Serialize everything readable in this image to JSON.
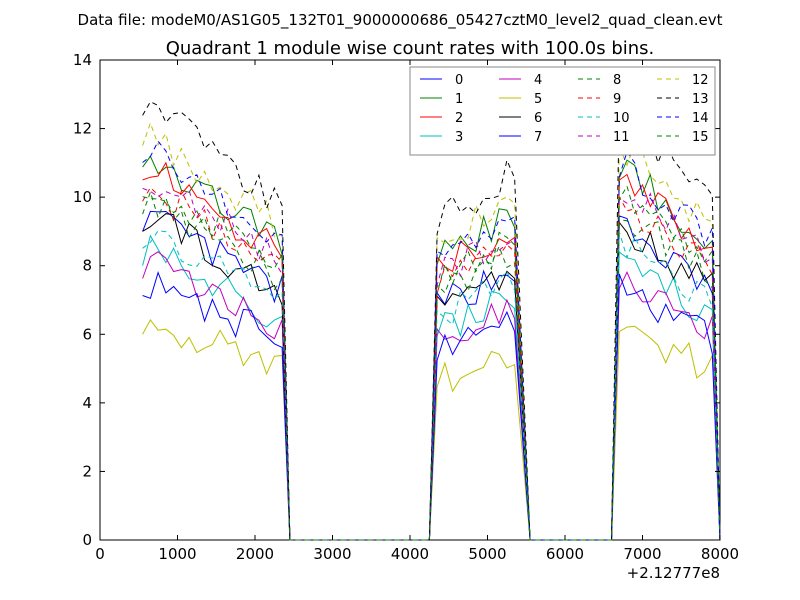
{
  "figure": {
    "suptitle": "Data file: modeM0/AS1G05_132T01_9000000686_05427cztM0_level2_quad_clean.evt"
  },
  "chart_data": {
    "type": "line",
    "title": "Quadrant 1 module wise count rates with 100.0s bins.",
    "xlabel": "",
    "ylabel": "",
    "xlim": [
      0,
      8000
    ],
    "ylim": [
      0,
      14
    ],
    "x_ticks": [
      0,
      1000,
      2000,
      3000,
      4000,
      5000,
      6000,
      7000,
      8000
    ],
    "y_ticks": [
      0,
      2,
      4,
      6,
      8,
      10,
      12,
      14
    ],
    "x_offset_label": "+2.12777e8",
    "grid": false,
    "legend": {
      "placement": "top-right",
      "columns": 4
    },
    "series": [
      {
        "name": "0",
        "color": "#0000ff",
        "style": "solid",
        "base": 7.6,
        "amp": 0.5
      },
      {
        "name": "1",
        "color": "#008000",
        "style": "solid",
        "base": 9.1,
        "amp": 0.5
      },
      {
        "name": "2",
        "color": "#ff0000",
        "style": "solid",
        "base": 8.8,
        "amp": 0.5
      },
      {
        "name": "3",
        "color": "#00bfbf",
        "style": "solid",
        "base": 6.8,
        "amp": 0.5
      },
      {
        "name": "4",
        "color": "#bf00bf",
        "style": "solid",
        "base": 6.5,
        "amp": 0.5
      },
      {
        "name": "5",
        "color": "#bfbf00",
        "style": "solid",
        "base": 5.2,
        "amp": 0.5
      },
      {
        "name": "6",
        "color": "#000000",
        "style": "solid",
        "base": 7.6,
        "amp": 0.5
      },
      {
        "name": "7",
        "color": "#0000ff",
        "style": "solid",
        "base": 6.1,
        "amp": 0.5
      },
      {
        "name": "8",
        "color": "#008000",
        "style": "dashed",
        "base": 8.0,
        "amp": 0.5
      },
      {
        "name": "9",
        "color": "#ff0000",
        "style": "dashed",
        "base": 8.3,
        "amp": 0.5
      },
      {
        "name": "10",
        "color": "#00bfbf",
        "style": "dashed",
        "base": 7.2,
        "amp": 0.5
      },
      {
        "name": "11",
        "color": "#bf00bf",
        "style": "dashed",
        "base": 8.6,
        "amp": 0.5
      },
      {
        "name": "12",
        "color": "#bfbf00",
        "style": "dashed",
        "base": 9.6,
        "amp": 0.5
      },
      {
        "name": "13",
        "color": "#000000",
        "style": "dashed",
        "base": 10.3,
        "amp": 0.5
      },
      {
        "name": "14",
        "color": "#0000ff",
        "style": "dashed",
        "base": 9.2,
        "amp": 0.5
      },
      {
        "name": "15",
        "color": "#008000",
        "style": "dashed",
        "base": 8.4,
        "amp": 0.5
      }
    ],
    "segments": [
      {
        "x_start": 550,
        "x_end": 2350,
        "drop_to": 2450
      },
      {
        "x_start": 4350,
        "x_end": 5400,
        "drop_to": 5550
      },
      {
        "x_start": 6700,
        "x_end": 7950,
        "drop_to": 8000
      }
    ]
  }
}
